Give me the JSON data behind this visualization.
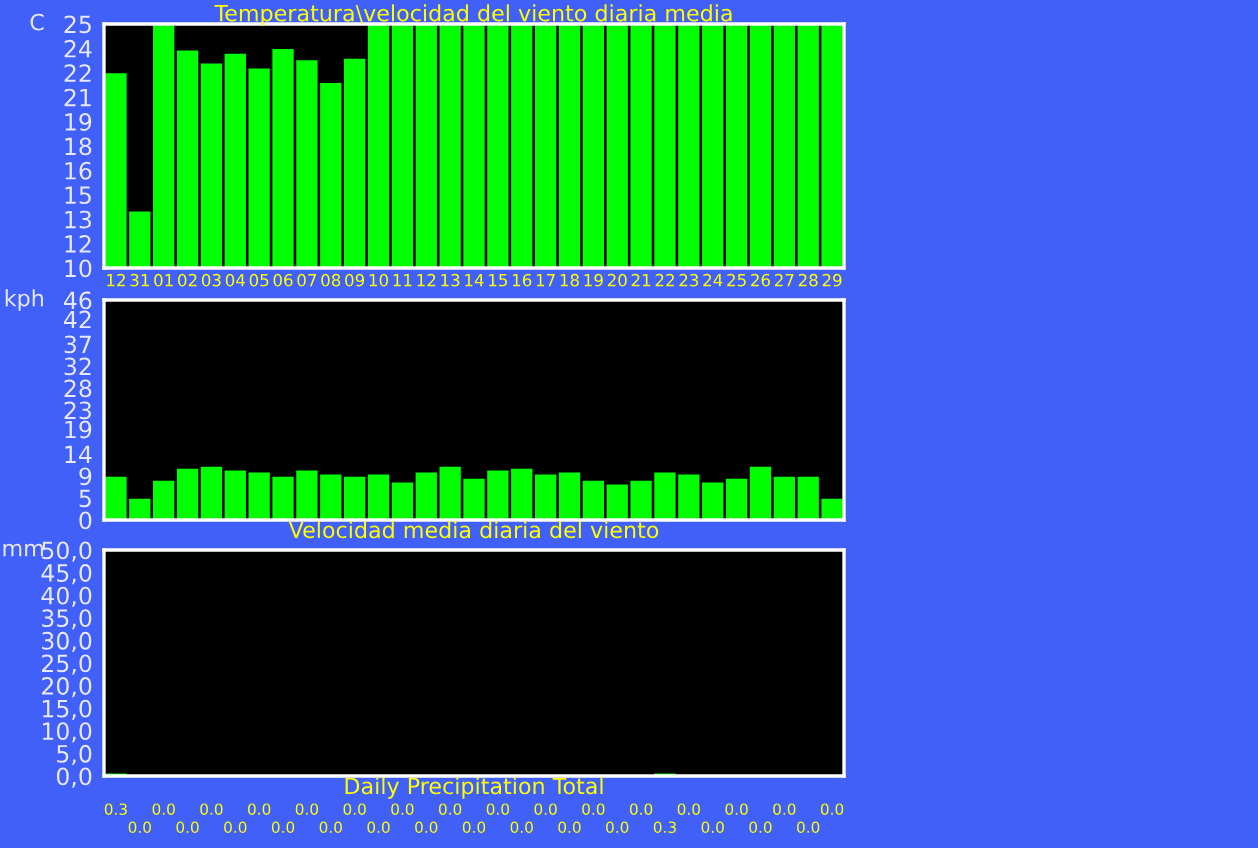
{
  "chart_data": [
    {
      "type": "bar",
      "title": "Temperatura\\velocidad del viento diaria media",
      "ylabel": "C",
      "categories": [
        "12",
        "31",
        "01",
        "02",
        "03",
        "04",
        "05",
        "06",
        "07",
        "08",
        "09",
        "10",
        "11",
        "12",
        "13",
        "14",
        "15",
        "16",
        "17",
        "18",
        "19",
        "20",
        "21",
        "22",
        "23",
        "24",
        "25",
        "26",
        "27",
        "28",
        "29"
      ],
      "values": [
        21.9,
        13.4,
        25,
        23.3,
        22.5,
        23.1,
        22.2,
        23.4,
        22.7,
        21.3,
        22.8,
        25,
        25,
        25,
        25,
        25,
        25,
        25,
        25,
        25,
        25,
        25,
        25,
        25,
        25,
        25,
        25,
        25,
        25,
        25,
        25
      ],
      "color": "#00ff00",
      "ylim": [
        10,
        25
      ],
      "yticks": [
        10,
        {
          "value": 11.5,
          "label": "12"
        },
        13,
        {
          "value": 14.5,
          "label": "15"
        },
        16,
        {
          "value": 17.5,
          "label": "18"
        },
        19,
        {
          "value": 20.5,
          "label": "21"
        },
        22,
        {
          "value": 23.5,
          "label": "24"
        },
        25
      ]
    },
    {
      "type": "bar",
      "ylabel": "kph",
      "xlabel": "Velocidad media diaria del viento",
      "categories": [
        null,
        null,
        null,
        null,
        null,
        null,
        null,
        null,
        null,
        null,
        null,
        null,
        null,
        null,
        null,
        null,
        null,
        null,
        null,
        null,
        null,
        null,
        null,
        null,
        null,
        null,
        null,
        null,
        null,
        null,
        null
      ],
      "values": [
        8.8,
        4.2,
        8.0,
        10.5,
        10.9,
        10.1,
        9.7,
        8.8,
        10.1,
        9.3,
        8.8,
        9.3,
        7.6,
        9.7,
        10.9,
        8.4,
        10.1,
        10.5,
        9.3,
        9.7,
        8.0,
        7.2,
        8.0,
        9.7,
        9.3,
        7.6,
        8.4,
        10.9,
        8.8,
        8.8,
        4.2
      ],
      "color": "#00ff00",
      "ylim": [
        0,
        46
      ],
      "tick_labels": "y",
      "yticks": [
        0,
        {
          "value": 4.6,
          "label": "5"
        },
        {
          "value": 9.2,
          "label": "9"
        },
        {
          "value": 13.8,
          "label": "14"
        },
        19,
        23,
        {
          "value": 27.6,
          "label": "28"
        },
        {
          "value": 32.2,
          "label": "32"
        },
        {
          "value": 36.8,
          "label": "37"
        },
        42,
        46
      ]
    },
    {
      "type": "bar",
      "ylabel": "mm",
      "xlabel": "Daily Precipitation Total",
      "categories": [
        null,
        null,
        null,
        null,
        null,
        null,
        null,
        null,
        null,
        null,
        null,
        null,
        null,
        null,
        null,
        null,
        null,
        null,
        null,
        null,
        null,
        null,
        null,
        null,
        null,
        null,
        null,
        null,
        null,
        null,
        null
      ],
      "values": [
        0.3,
        0.0,
        0.0,
        0.0,
        0.0,
        0.0,
        0.0,
        0.0,
        0.0,
        0.0,
        0.0,
        0.0,
        0.0,
        0.0,
        0.0,
        0.0,
        0.0,
        0.0,
        0.0,
        0.0,
        0.0,
        0.0,
        0.0,
        0.3,
        0.0,
        0.0,
        0.0,
        0.0,
        0.0,
        0.0,
        0.0
      ],
      "value_labels": [
        "0.3",
        "0.0",
        "0.0",
        "0.0",
        "0.0",
        "0.0",
        "0.0",
        "0.0",
        "0.0",
        "0.0",
        "0.0",
        "0.0",
        "0.0",
        "0.0",
        "0.0",
        "0.0",
        "0.0",
        "0.0",
        "0.0",
        "0.0",
        "0.0",
        "0.0",
        "0.0",
        "0.3",
        "0.0",
        "0.0",
        "0.0",
        "0.0",
        "0.0",
        "0.0",
        "0.0"
      ],
      "color": "#00ff00",
      "ylim": [
        0,
        50
      ],
      "tick_labels": "y",
      "yticks": [
        {
          "value": 0,
          "label": "0,0"
        },
        {
          "value": 5,
          "label": "5,0"
        },
        {
          "value": 10,
          "label": "10,0"
        },
        {
          "value": 15,
          "label": "15,0"
        },
        {
          "value": 20,
          "label": "20,0"
        },
        {
          "value": 25,
          "label": "25,0"
        },
        {
          "value": 30,
          "label": "30,0"
        },
        {
          "value": 35,
          "label": "35,0"
        },
        {
          "value": 40,
          "label": "40,0"
        },
        {
          "value": 45,
          "label": "45,0"
        },
        {
          "value": 50,
          "label": "50,0"
        }
      ]
    }
  ]
}
